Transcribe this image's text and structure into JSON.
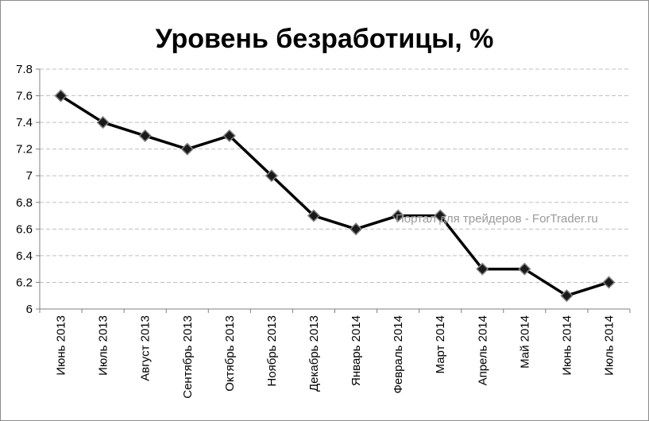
{
  "chart_data": {
    "type": "line",
    "title": "Уровень безработицы, %",
    "categories": [
      "Июнь 2013",
      "Июль 2013",
      "Август 2013",
      "Сентябрь 2013",
      "Октябрь 2013",
      "Ноябрь 2013",
      "Декабрь 2013",
      "Январь 2014",
      "Февраль 2014",
      "Март 2014",
      "Апрель 2014",
      "Май 2014",
      "Июнь 2014",
      "Июль 2014"
    ],
    "series": [
      {
        "values": [
          7.6,
          7.4,
          7.3,
          7.2,
          7.3,
          7.0,
          6.7,
          6.6,
          6.7,
          6.7,
          6.3,
          6.3,
          6.1,
          6.2
        ]
      }
    ],
    "yticks": [
      "6",
      "6.2",
      "6.4",
      "6.6",
      "6.8",
      "7",
      "7.2",
      "7.4",
      "7.6",
      "7.8"
    ],
    "ylim": [
      6,
      7.8
    ],
    "grid": true,
    "legend": "none",
    "colors": {
      "line": "#000000",
      "marker": "#1a1a1a",
      "marker_edge": "#7f7f7f",
      "grid": "#bfbfbf",
      "axis": "#808080"
    }
  },
  "watermark": "Портал для трейдеров - ForTrader.ru"
}
